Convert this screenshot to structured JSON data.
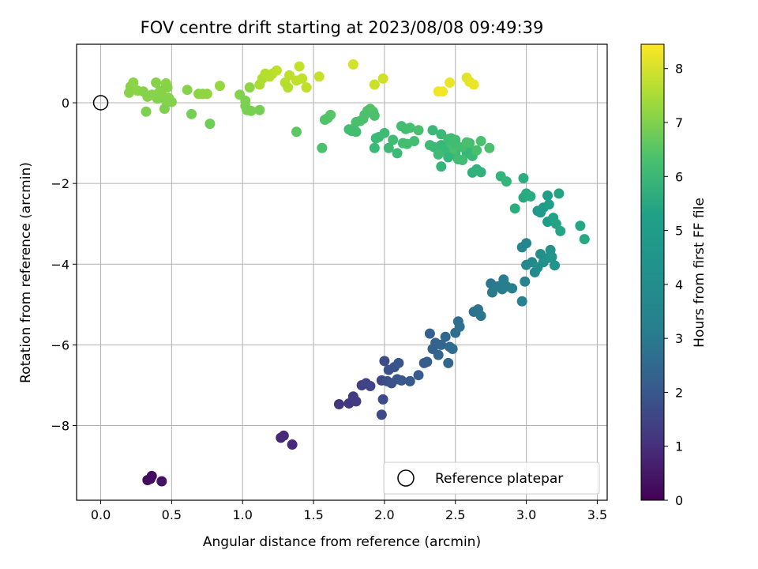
{
  "chart_data": {
    "type": "scatter",
    "title": "FOV centre drift starting at 2023/08/08 09:49:39",
    "xlabel": "Angular distance from reference (arcmin)",
    "ylabel": "Rotation from reference (arcmin)",
    "colorbar_label": "Hours from first FF file",
    "xlim": [
      -0.17,
      3.57
    ],
    "ylim": [
      -9.85,
      1.45
    ],
    "xticks": [
      0.0,
      0.5,
      1.0,
      1.5,
      2.0,
      2.5,
      3.0,
      3.5
    ],
    "xtick_labels": [
      "0.0",
      "0.5",
      "1.0",
      "1.5",
      "2.0",
      "2.5",
      "3.0",
      "3.5"
    ],
    "yticks": [
      0,
      -2,
      -4,
      -6,
      -8
    ],
    "ytick_labels": [
      "0",
      "−2",
      "−4",
      "−6",
      "−8"
    ],
    "clim": [
      0,
      8.45
    ],
    "cticks": [
      0,
      1,
      2,
      3,
      4,
      5,
      6,
      7,
      8
    ],
    "ctick_labels": [
      "0",
      "1",
      "2",
      "3",
      "4",
      "5",
      "6",
      "7",
      "8"
    ],
    "grid": true,
    "colormap": "viridis",
    "legend": {
      "placement": "lower-right",
      "entries": [
        {
          "label": "Reference platepar",
          "marker": "open-circle"
        }
      ]
    },
    "reference_point": [
      0.0,
      0.0
    ],
    "points_xyt": [
      [
        0.33,
        -9.35,
        0.2
      ],
      [
        0.36,
        -9.25,
        0.25
      ],
      [
        0.35,
        -9.32,
        0.3
      ],
      [
        0.43,
        -9.38,
        0.4
      ],
      [
        1.27,
        -8.3,
        0.9
      ],
      [
        1.29,
        -8.25,
        0.95
      ],
      [
        1.35,
        -8.47,
        1.0
      ],
      [
        1.68,
        -7.47,
        1.3
      ],
      [
        1.75,
        -7.45,
        1.4
      ],
      [
        1.78,
        -7.28,
        1.45
      ],
      [
        1.8,
        -7.4,
        1.5
      ],
      [
        1.84,
        -7.0,
        1.6
      ],
      [
        1.87,
        -6.95,
        1.7
      ],
      [
        1.9,
        -7.02,
        1.75
      ],
      [
        1.98,
        -6.88,
        1.8
      ],
      [
        1.98,
        -7.73,
        1.85
      ],
      [
        1.99,
        -7.35,
        1.9
      ],
      [
        2.0,
        -6.4,
        1.95
      ],
      [
        2.02,
        -6.9,
        2.0
      ],
      [
        2.03,
        -6.62,
        2.05
      ],
      [
        2.05,
        -6.95,
        2.1
      ],
      [
        2.07,
        -6.55,
        2.15
      ],
      [
        2.09,
        -6.85,
        2.2
      ],
      [
        2.1,
        -6.45,
        2.25
      ],
      [
        2.12,
        -6.88,
        2.3
      ],
      [
        2.18,
        -6.9,
        2.35
      ],
      [
        2.24,
        -6.75,
        2.4
      ],
      [
        2.28,
        -6.45,
        2.45
      ],
      [
        2.3,
        -6.42,
        2.5
      ],
      [
        2.32,
        -5.72,
        2.55
      ],
      [
        2.34,
        -6.1,
        2.6
      ],
      [
        2.36,
        -5.95,
        2.65
      ],
      [
        2.38,
        -6.25,
        2.7
      ],
      [
        2.4,
        -6.0,
        2.75
      ],
      [
        2.43,
        -5.8,
        2.8
      ],
      [
        2.45,
        -6.45,
        2.85
      ],
      [
        2.46,
        -6.05,
        2.9
      ],
      [
        2.48,
        -6.1,
        2.95
      ],
      [
        2.5,
        -5.7,
        3.0
      ],
      [
        2.52,
        -5.42,
        3.05
      ],
      [
        2.53,
        -5.55,
        3.1
      ],
      [
        2.63,
        -5.18,
        3.2
      ],
      [
        2.66,
        -5.12,
        3.25
      ],
      [
        2.68,
        -5.28,
        3.3
      ],
      [
        2.75,
        -4.48,
        3.4
      ],
      [
        2.76,
        -4.7,
        3.45
      ],
      [
        2.8,
        -4.55,
        3.5
      ],
      [
        2.83,
        -4.62,
        3.55
      ],
      [
        2.84,
        -4.38,
        3.6
      ],
      [
        2.86,
        -4.55,
        3.65
      ],
      [
        2.9,
        -4.6,
        3.7
      ],
      [
        2.97,
        -4.92,
        3.75
      ],
      [
        2.99,
        -4.43,
        3.8
      ],
      [
        2.97,
        -3.58,
        3.85
      ],
      [
        3.0,
        -3.48,
        3.9
      ],
      [
        3.0,
        -4.02,
        3.95
      ],
      [
        3.04,
        -3.95,
        4.0
      ],
      [
        3.06,
        -4.2,
        4.05
      ],
      [
        3.08,
        -4.08,
        4.1
      ],
      [
        3.1,
        -3.75,
        4.15
      ],
      [
        3.12,
        -3.95,
        4.2
      ],
      [
        3.15,
        -3.85,
        4.25
      ],
      [
        3.17,
        -3.65,
        4.3
      ],
      [
        3.18,
        -3.82,
        4.35
      ],
      [
        3.2,
        -4.03,
        4.4
      ],
      [
        3.08,
        -2.68,
        4.5
      ],
      [
        3.1,
        -2.72,
        4.55
      ],
      [
        3.12,
        -2.6,
        4.6
      ],
      [
        3.15,
        -2.95,
        4.65
      ],
      [
        3.15,
        -2.3,
        4.7
      ],
      [
        3.16,
        -2.52,
        4.75
      ],
      [
        3.19,
        -2.85,
        4.8
      ],
      [
        3.21,
        -3.0,
        4.85
      ],
      [
        3.23,
        -2.25,
        4.9
      ],
      [
        3.24,
        -3.18,
        4.95
      ],
      [
        3.38,
        -3.05,
        5.0
      ],
      [
        3.41,
        -3.38,
        5.05
      ],
      [
        2.98,
        -2.35,
        5.1
      ],
      [
        3.0,
        -2.25,
        5.15
      ],
      [
        3.03,
        -2.32,
        5.2
      ],
      [
        2.92,
        -2.62,
        5.25
      ],
      [
        2.98,
        -1.87,
        5.3
      ],
      [
        2.62,
        -1.73,
        5.35
      ],
      [
        2.65,
        -1.65,
        5.4
      ],
      [
        2.68,
        -1.72,
        5.45
      ],
      [
        2.82,
        -1.82,
        5.5
      ],
      [
        2.86,
        -1.95,
        5.55
      ],
      [
        2.58,
        -1.25,
        5.6
      ],
      [
        2.6,
        -1.2,
        5.65
      ],
      [
        2.62,
        -1.32,
        5.7
      ],
      [
        2.5,
        -1.25,
        5.75
      ],
      [
        2.52,
        -1.4,
        5.8
      ],
      [
        2.55,
        -1.42,
        5.85
      ],
      [
        2.45,
        -1.1,
        5.9
      ],
      [
        2.48,
        -1.15,
        5.95
      ],
      [
        2.4,
        -1.05,
        5.65
      ],
      [
        2.42,
        -1.18,
        5.7
      ],
      [
        2.35,
        -1.1,
        5.72
      ],
      [
        2.32,
        -1.05,
        5.78
      ],
      [
        2.38,
        -1.28,
        5.8
      ],
      [
        2.4,
        -1.58,
        5.55
      ],
      [
        2.45,
        -1.35,
        5.6
      ],
      [
        2.5,
        -1.0,
        5.85
      ],
      [
        2.55,
        -1.1,
        5.9
      ],
      [
        2.6,
        -1.0,
        5.92
      ],
      [
        2.65,
        -1.18,
        5.95
      ],
      [
        2.68,
        -0.95,
        6.0
      ],
      [
        2.74,
        -1.12,
        6.02
      ],
      [
        2.58,
        -0.98,
        5.98
      ],
      [
        2.45,
        -0.9,
        5.82
      ],
      [
        2.4,
        -0.78,
        5.75
      ],
      [
        2.34,
        -0.68,
        5.7
      ],
      [
        2.47,
        -0.88,
        5.8
      ],
      [
        2.5,
        -0.92,
        5.85
      ],
      [
        2.12,
        -0.58,
        5.88
      ],
      [
        2.15,
        -0.65,
        5.9
      ],
      [
        2.18,
        -0.62,
        5.92
      ],
      [
        2.24,
        -0.68,
        5.95
      ],
      [
        2.13,
        -1.0,
        5.85
      ],
      [
        2.16,
        -1.02,
        5.88
      ],
      [
        2.21,
        -0.95,
        5.9
      ],
      [
        2.06,
        -0.92,
        5.8
      ],
      [
        2.09,
        -1.25,
        5.75
      ],
      [
        2.03,
        -1.12,
        5.78
      ],
      [
        1.93,
        -1.12,
        5.7
      ],
      [
        1.94,
        -0.88,
        5.72
      ],
      [
        1.96,
        -0.85,
        5.75
      ],
      [
        2.0,
        -0.75,
        5.8
      ],
      [
        1.88,
        -0.2,
        6.05
      ],
      [
        1.9,
        -0.15,
        6.08
      ],
      [
        1.92,
        -0.22,
        6.1
      ],
      [
        1.86,
        -0.3,
        6.0
      ],
      [
        1.85,
        -0.4,
        6.02
      ],
      [
        1.83,
        -0.45,
        6.0
      ],
      [
        1.8,
        -0.48,
        5.98
      ],
      [
        1.78,
        -0.65,
        5.95
      ],
      [
        1.77,
        -0.7,
        5.92
      ],
      [
        1.8,
        -0.72,
        5.9
      ],
      [
        1.75,
        -0.66,
        5.88
      ],
      [
        1.93,
        -0.32,
        6.02
      ],
      [
        1.62,
        -0.3,
        6.2
      ],
      [
        1.6,
        -0.38,
        6.15
      ],
      [
        1.58,
        -0.42,
        6.12
      ],
      [
        1.56,
        -1.12,
        6.0
      ],
      [
        1.38,
        -0.72,
        6.3
      ],
      [
        1.03,
        -0.18,
        6.7
      ],
      [
        1.02,
        -0.08,
        6.75
      ],
      [
        1.06,
        -0.2,
        6.72
      ],
      [
        1.12,
        -0.18,
        6.68
      ],
      [
        0.98,
        0.2,
        6.85
      ],
      [
        1.02,
        0.05,
        6.8
      ],
      [
        1.05,
        0.38,
        7.0
      ],
      [
        0.77,
        -0.52,
        6.6
      ],
      [
        0.64,
        -0.28,
        6.65
      ],
      [
        0.61,
        0.32,
        6.9
      ],
      [
        0.69,
        0.22,
        6.95
      ],
      [
        0.72,
        0.22,
        7.0
      ],
      [
        0.75,
        0.22,
        7.05
      ],
      [
        0.84,
        0.42,
        7.1
      ],
      [
        0.2,
        0.25,
        6.9
      ],
      [
        0.21,
        0.4,
        6.92
      ],
      [
        0.23,
        0.5,
        6.95
      ],
      [
        0.26,
        0.3,
        6.95
      ],
      [
        0.3,
        0.28,
        6.9
      ],
      [
        0.33,
        0.15,
        6.88
      ],
      [
        0.36,
        0.2,
        6.9
      ],
      [
        0.39,
        0.5,
        6.92
      ],
      [
        0.4,
        0.1,
        6.85
      ],
      [
        0.42,
        0.3,
        6.88
      ],
      [
        0.43,
        0.2,
        6.9
      ],
      [
        0.45,
        -0.15,
        6.8
      ],
      [
        0.46,
        0.48,
        6.95
      ],
      [
        0.47,
        0.38,
        6.92
      ],
      [
        0.48,
        0.12,
        6.9
      ],
      [
        0.5,
        0.02,
        6.85
      ],
      [
        0.46,
        0.05,
        6.87
      ],
      [
        0.41,
        0.25,
        6.9
      ],
      [
        0.38,
        0.18,
        6.89
      ],
      [
        0.32,
        -0.22,
        6.8
      ],
      [
        1.12,
        0.45,
        7.4
      ],
      [
        1.14,
        0.6,
        7.45
      ],
      [
        1.16,
        0.72,
        7.5
      ],
      [
        1.19,
        0.65,
        7.52
      ],
      [
        1.21,
        0.72,
        7.55
      ],
      [
        1.24,
        0.8,
        7.6
      ],
      [
        1.3,
        0.5,
        7.55
      ],
      [
        1.32,
        0.38,
        7.5
      ],
      [
        1.33,
        0.68,
        7.62
      ],
      [
        1.38,
        0.55,
        7.65
      ],
      [
        1.4,
        0.9,
        7.7
      ],
      [
        1.42,
        0.6,
        7.68
      ],
      [
        1.45,
        0.38,
        7.65
      ],
      [
        1.54,
        0.65,
        7.75
      ],
      [
        1.78,
        0.95,
        7.9
      ],
      [
        1.93,
        0.45,
        7.8
      ],
      [
        1.99,
        0.6,
        7.85
      ],
      [
        2.38,
        0.28,
        8.3
      ],
      [
        2.41,
        0.28,
        8.32
      ],
      [
        2.46,
        0.5,
        8.2
      ],
      [
        2.58,
        0.62,
        8.1
      ],
      [
        2.6,
        0.52,
        8.15
      ],
      [
        2.63,
        0.45,
        8.2
      ]
    ]
  }
}
